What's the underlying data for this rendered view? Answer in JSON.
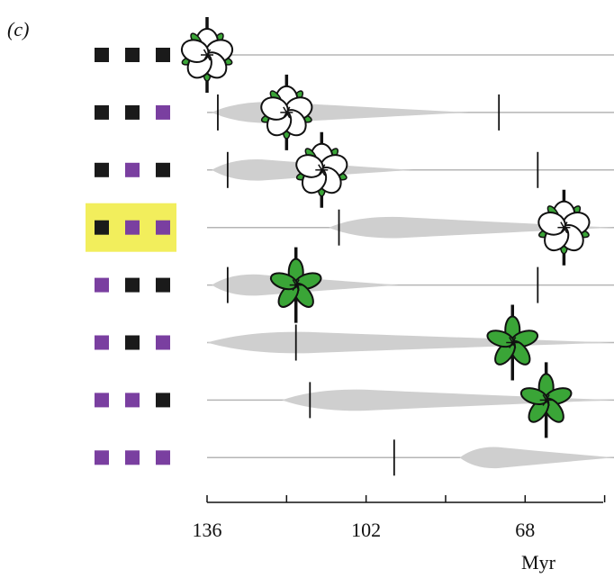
{
  "chart_data": {
    "type": "timeline",
    "panel_label": "(c)",
    "x_label": "Myr",
    "xlim": [
      136,
      49
    ],
    "xticks": [
      136,
      102,
      68
    ],
    "xminor": [
      119,
      85,
      51
    ],
    "state_colors": {
      "B": "#1a1a1a",
      "P": "#7a3fa0"
    },
    "highlight_color": "#f2ee5c",
    "shade_color": "#cfcfcf",
    "line_color": "#b5b5b5",
    "rows": [
      {
        "states": [
          "B",
          "B",
          "B"
        ],
        "ticks": [],
        "shade": null,
        "flower": 136,
        "flower_style": "white"
      },
      {
        "states": [
          "B",
          "B",
          "P"
        ],
        "ticks": [
          133.7,
          73.6
        ],
        "shade": [
          135,
          80
        ],
        "flower": 119,
        "flower_style": "white"
      },
      {
        "states": [
          "B",
          "P",
          "B"
        ],
        "ticks": [
          131.6,
          65.3
        ],
        "shade": [
          135,
          92
        ],
        "flower": 111.5,
        "flower_style": "white"
      },
      {
        "states": [
          "B",
          "P",
          "P"
        ],
        "ticks": [
          107.8
        ],
        "shade": [
          110,
          49
        ],
        "flower": 59.7,
        "flower_style": "white",
        "highlight": true
      },
      {
        "states": [
          "P",
          "B",
          "B"
        ],
        "ticks": [
          131.6,
          65.3
        ],
        "shade": [
          135,
          95
        ],
        "flower": 117,
        "flower_style": "green"
      },
      {
        "states": [
          "P",
          "B",
          "P"
        ],
        "ticks": [
          117
        ],
        "shade": [
          136,
          49
        ],
        "flower": 70.7,
        "flower_style": "green"
      },
      {
        "states": [
          "P",
          "P",
          "B"
        ],
        "ticks": [
          114
        ],
        "shade": [
          120,
          49
        ],
        "flower": 63.5,
        "flower_style": "green"
      },
      {
        "states": [
          "P",
          "P",
          "P"
        ],
        "ticks": [
          96
        ],
        "shade": [
          82,
          49
        ],
        "flower": null,
        "flower_style": "green"
      }
    ]
  }
}
